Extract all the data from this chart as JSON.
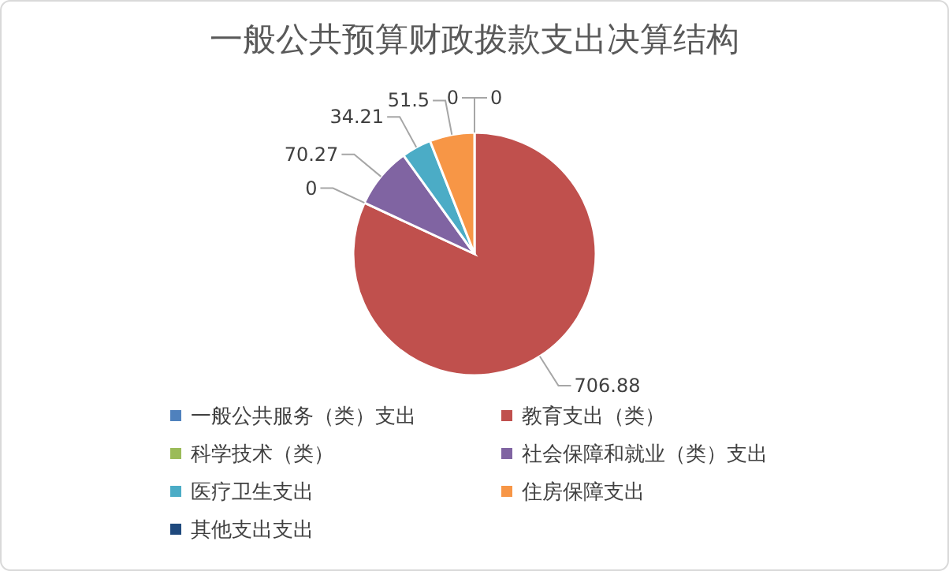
{
  "chart_data": {
    "type": "pie",
    "title": "一般公共预算财政拨款支出决算结构",
    "categories": [
      "一般公共服务（类）支出",
      "教育支出（类）",
      "科学技术（类）",
      "社会保障和就业（类）支出",
      "医疗卫生支出",
      "住房保障支出",
      "其他支出支出"
    ],
    "values": [
      0,
      706.88,
      0,
      70.27,
      34.21,
      51.5,
      0
    ],
    "colors": [
      "#4f81bd",
      "#c0504d",
      "#9bbb59",
      "#8064a2",
      "#4bacc6",
      "#f79646",
      "#1f497d"
    ],
    "value_labels": [
      "0",
      "706.88",
      "0",
      "70.27",
      "34.21",
      "51.5",
      "0"
    ],
    "legend": "bottom"
  }
}
